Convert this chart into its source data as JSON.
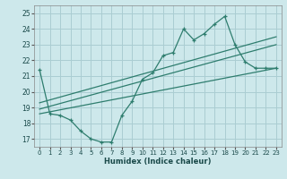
{
  "title": "",
  "xlabel": "Humidex (Indice chaleur)",
  "xlim": [
    -0.5,
    23.5
  ],
  "ylim": [
    16.5,
    25.5
  ],
  "yticks": [
    17,
    18,
    19,
    20,
    21,
    22,
    23,
    24,
    25
  ],
  "xticks": [
    0,
    1,
    2,
    3,
    4,
    5,
    6,
    7,
    8,
    9,
    10,
    11,
    12,
    13,
    14,
    15,
    16,
    17,
    18,
    19,
    20,
    21,
    22,
    23
  ],
  "bg_color": "#cde8eb",
  "grid_color": "#aacdd2",
  "line_color": "#2e7d6e",
  "line1_x": [
    0,
    1,
    2,
    3,
    4,
    5,
    6,
    7,
    8,
    9,
    10,
    11,
    12,
    13,
    14,
    15,
    16,
    17,
    18,
    19,
    20,
    21,
    22,
    23
  ],
  "line1_y": [
    21.4,
    18.6,
    18.5,
    18.2,
    17.5,
    17.0,
    16.8,
    16.8,
    18.5,
    19.4,
    20.8,
    21.2,
    22.3,
    22.5,
    24.0,
    23.3,
    23.7,
    24.3,
    24.8,
    23.0,
    21.9,
    21.5,
    21.5,
    21.5
  ],
  "line2_x": [
    0,
    23
  ],
  "line2_y": [
    18.6,
    21.5
  ],
  "line3_x": [
    0,
    23
  ],
  "line3_y": [
    18.9,
    23.0
  ],
  "line4_x": [
    0,
    23
  ],
  "line4_y": [
    19.3,
    23.5
  ]
}
